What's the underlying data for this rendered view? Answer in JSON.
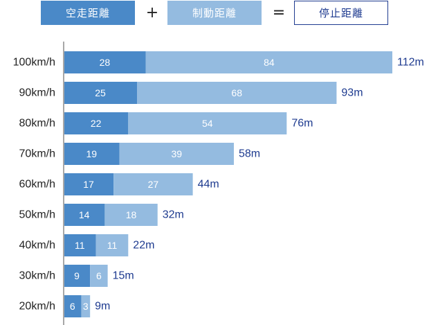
{
  "legend": {
    "reaction_label": "空走距離",
    "plus": "+",
    "braking_label": "制動距離",
    "equals": "=",
    "stopping_label": "停止距離"
  },
  "colors": {
    "reaction": "#4a89c8",
    "braking": "#94bbe0",
    "total_text": "#1d3a8f",
    "axis": "#8a8a8a",
    "category_text": "#222222",
    "bar_text": "#ffffff"
  },
  "chart_data": {
    "type": "bar",
    "orientation": "horizontal",
    "stacked": true,
    "categories": [
      "100km/h",
      "90km/h",
      "80km/h",
      "70km/h",
      "60km/h",
      "50km/h",
      "40km/h",
      "30km/h",
      "20km/h"
    ],
    "series": [
      {
        "name": "空走距離",
        "values": [
          28,
          25,
          22,
          19,
          17,
          14,
          11,
          9,
          6
        ]
      },
      {
        "name": "制動距離",
        "values": [
          84,
          68,
          54,
          39,
          27,
          18,
          11,
          6,
          3
        ]
      }
    ],
    "totals": [
      "112m",
      "93m",
      "76m",
      "58m",
      "44m",
      "32m",
      "22m",
      "15m",
      "9m"
    ],
    "xlim": [
      0,
      112
    ],
    "grid": false
  }
}
